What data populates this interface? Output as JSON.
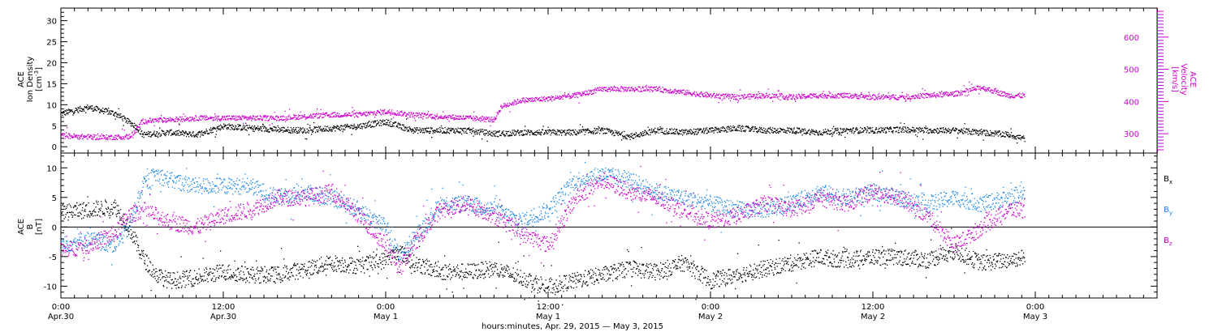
{
  "chart_data": [
    {
      "type": "scatter",
      "panel": "top",
      "left_axis": {
        "label_lines": [
          "ACE",
          "Ion Density"
        ],
        "unit": "[cm",
        "unit_sup": "-3",
        "unit_close": "]",
        "ylim": [
          -1.5,
          33
        ],
        "ticks": [
          0,
          5,
          10,
          15,
          20,
          25,
          30
        ],
        "tick_labels": [
          "0",
          "5",
          "10",
          "15",
          "20",
          "25",
          "30"
        ]
      },
      "right_axis": {
        "label_lines": [
          "ACE",
          "Velocity",
          "[km/s]"
        ],
        "ylim": [
          240,
          690
        ],
        "ticks": [
          300,
          400,
          500,
          600
        ],
        "tick_labels": [
          "300",
          "400",
          "500",
          "600"
        ],
        "color": "#cc00cc"
      },
      "series": [
        {
          "key": "density",
          "color": "#000000",
          "axis": "left",
          "points": [
            [
              0,
              8
            ],
            [
              2,
              9.5
            ],
            [
              4,
              8
            ],
            [
              5.5,
              5
            ],
            [
              6,
              3
            ],
            [
              8,
              3.5
            ],
            [
              10,
              3
            ],
            [
              12,
              5
            ],
            [
              14,
              4.5
            ],
            [
              16,
              4.2
            ],
            [
              18,
              4
            ],
            [
              20,
              4.5
            ],
            [
              22,
              5
            ],
            [
              24,
              6
            ],
            [
              26,
              4
            ],
            [
              28,
              4
            ],
            [
              30,
              4
            ],
            [
              32,
              3.2
            ],
            [
              34,
              3.5
            ],
            [
              36,
              3.5
            ],
            [
              38,
              3.5
            ],
            [
              40,
              4
            ],
            [
              42,
              2.5
            ],
            [
              44,
              4
            ],
            [
              46,
              3.5
            ],
            [
              48,
              4
            ],
            [
              50,
              4.5
            ],
            [
              52,
              4
            ],
            [
              54,
              4
            ],
            [
              56,
              3.5
            ],
            [
              58,
              4
            ],
            [
              60,
              4
            ],
            [
              62,
              4.2
            ],
            [
              64,
              4
            ],
            [
              66,
              4
            ],
            [
              68,
              3.5
            ],
            [
              70,
              3
            ],
            [
              71.2,
              2
            ]
          ]
        },
        {
          "key": "velocity",
          "color": "#cc00cc",
          "axis": "right",
          "points": [
            [
              0,
              295
            ],
            [
              3,
              290
            ],
            [
              5,
              292
            ],
            [
              5.5,
              310
            ],
            [
              6,
              340
            ],
            [
              8,
              345
            ],
            [
              10,
              350
            ],
            [
              12,
              350
            ],
            [
              14,
              350
            ],
            [
              16,
              350
            ],
            [
              18,
              355
            ],
            [
              20,
              360
            ],
            [
              22,
              360
            ],
            [
              24,
              370
            ],
            [
              26,
              360
            ],
            [
              28,
              355
            ],
            [
              30,
              350
            ],
            [
              32,
              345
            ],
            [
              32.5,
              385
            ],
            [
              34,
              405
            ],
            [
              36,
              410
            ],
            [
              38,
              420
            ],
            [
              40,
              440
            ],
            [
              42,
              440
            ],
            [
              44,
              440
            ],
            [
              46,
              430
            ],
            [
              48,
              420
            ],
            [
              50,
              415
            ],
            [
              52,
              420
            ],
            [
              54,
              415
            ],
            [
              56,
              420
            ],
            [
              58,
              420
            ],
            [
              60,
              415
            ],
            [
              62,
              415
            ],
            [
              64,
              420
            ],
            [
              66,
              425
            ],
            [
              68,
              445
            ],
            [
              70,
              420
            ],
            [
              71.2,
              420
            ]
          ]
        }
      ]
    },
    {
      "type": "scatter",
      "panel": "bottom",
      "left_axis": {
        "label_lines": [
          "ACE",
          "B",
          "[nT]"
        ],
        "ylim": [
          -12,
          12.5
        ],
        "ticks": [
          -10,
          -5,
          0,
          5,
          10
        ],
        "tick_labels": [
          "-10",
          "-5",
          "0",
          "5",
          "10"
        ]
      },
      "zero_line": true,
      "series": [
        {
          "key": "bx",
          "name": "B",
          "sub": "x",
          "color": "#000000",
          "points": [
            [
              0,
              2.5
            ],
            [
              2,
              3
            ],
            [
              4,
              3.5
            ],
            [
              5,
              0
            ],
            [
              6,
              -5
            ],
            [
              7,
              -8
            ],
            [
              8,
              -9
            ],
            [
              10,
              -8.5
            ],
            [
              12,
              -7.5
            ],
            [
              14,
              -8
            ],
            [
              16,
              -8
            ],
            [
              18,
              -7
            ],
            [
              20,
              -6
            ],
            [
              22,
              -6.5
            ],
            [
              24,
              -5.5
            ],
            [
              25,
              -4
            ],
            [
              26,
              -6
            ],
            [
              28,
              -7.5
            ],
            [
              30,
              -7.5
            ],
            [
              32,
              -7
            ],
            [
              34,
              -8.5
            ],
            [
              36,
              -10
            ],
            [
              38,
              -9
            ],
            [
              40,
              -8
            ],
            [
              42,
              -7
            ],
            [
              44,
              -7.5
            ],
            [
              46,
              -6
            ],
            [
              48,
              -9
            ],
            [
              50,
              -8
            ],
            [
              52,
              -7
            ],
            [
              54,
              -6
            ],
            [
              56,
              -5
            ],
            [
              58,
              -5.5
            ],
            [
              60,
              -5
            ],
            [
              62,
              -5
            ],
            [
              64,
              -5.5
            ],
            [
              66,
              -4
            ],
            [
              68,
              -6
            ],
            [
              70,
              -5.5
            ],
            [
              71.2,
              -5
            ]
          ]
        },
        {
          "key": "by",
          "name": "B",
          "sub": "y",
          "color": "#1e88e5",
          "points": [
            [
              0,
              -3
            ],
            [
              2,
              -2
            ],
            [
              4,
              -3
            ],
            [
              5,
              0
            ],
            [
              6,
              7
            ],
            [
              7,
              9
            ],
            [
              8,
              8
            ],
            [
              10,
              7
            ],
            [
              12,
              7
            ],
            [
              14,
              7
            ],
            [
              16,
              5
            ],
            [
              18,
              6
            ],
            [
              20,
              5
            ],
            [
              22,
              3
            ],
            [
              24,
              0
            ],
            [
              25,
              -5
            ],
            [
              26,
              -2
            ],
            [
              28,
              4
            ],
            [
              30,
              4
            ],
            [
              32,
              3
            ],
            [
              34,
              1
            ],
            [
              36,
              3
            ],
            [
              38,
              8
            ],
            [
              40,
              9
            ],
            [
              42,
              8
            ],
            [
              44,
              6
            ],
            [
              46,
              5
            ],
            [
              48,
              4
            ],
            [
              50,
              3
            ],
            [
              52,
              3
            ],
            [
              54,
              4
            ],
            [
              56,
              6
            ],
            [
              58,
              5
            ],
            [
              60,
              6
            ],
            [
              62,
              5
            ],
            [
              64,
              4
            ],
            [
              66,
              5
            ],
            [
              68,
              4
            ],
            [
              70,
              5
            ],
            [
              71.2,
              6
            ]
          ]
        },
        {
          "key": "bz",
          "name": "B",
          "sub": "z",
          "color": "#cc00cc",
          "points": [
            [
              0,
              -4
            ],
            [
              2,
              -3
            ],
            [
              4,
              -1
            ],
            [
              5,
              2
            ],
            [
              6,
              3
            ],
            [
              8,
              1
            ],
            [
              10,
              0
            ],
            [
              12,
              2
            ],
            [
              14,
              3
            ],
            [
              16,
              5
            ],
            [
              18,
              5
            ],
            [
              20,
              6
            ],
            [
              22,
              2
            ],
            [
              24,
              -3
            ],
            [
              25,
              -7
            ],
            [
              26,
              -3
            ],
            [
              28,
              3
            ],
            [
              30,
              4
            ],
            [
              32,
              2
            ],
            [
              34,
              -1
            ],
            [
              36,
              -3
            ],
            [
              38,
              5
            ],
            [
              40,
              8
            ],
            [
              42,
              6
            ],
            [
              44,
              5
            ],
            [
              46,
              3
            ],
            [
              48,
              1
            ],
            [
              50,
              2
            ],
            [
              52,
              4
            ],
            [
              54,
              3
            ],
            [
              56,
              5
            ],
            [
              58,
              4
            ],
            [
              60,
              6
            ],
            [
              62,
              5
            ],
            [
              64,
              2
            ],
            [
              66,
              -3
            ],
            [
              68,
              0
            ],
            [
              70,
              3
            ],
            [
              71.2,
              3
            ]
          ]
        }
      ]
    }
  ],
  "x_axis": {
    "xlim": [
      0,
      81
    ],
    "major_ticks": [
      0,
      12,
      24,
      36,
      48,
      60,
      72
    ],
    "tick_labels_line1": [
      "0:00",
      "12:00",
      "0:00",
      "12:00",
      "0:00",
      "12:00",
      "0:00"
    ],
    "tick_labels_line2": [
      "Apr.30",
      "Apr.30",
      "May  1",
      "May  1",
      "May  2",
      "May  2",
      "May  3"
    ],
    "minor_step": 1,
    "title": "hours:minutes, Apr. 29, 2015 — May  3, 2015"
  }
}
